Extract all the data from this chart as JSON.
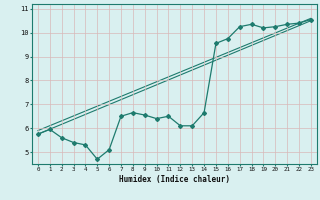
{
  "title": "",
  "xlabel": "Humidex (Indice chaleur)",
  "bg_color": "#d9f0f0",
  "grid_color": "#c8dede",
  "line_color": "#1e7b6e",
  "xlim": [
    -0.5,
    23.5
  ],
  "ylim": [
    4.5,
    11.2
  ],
  "xticks": [
    0,
    1,
    2,
    3,
    4,
    5,
    6,
    7,
    8,
    9,
    10,
    11,
    12,
    13,
    14,
    15,
    16,
    17,
    18,
    19,
    20,
    21,
    22,
    23
  ],
  "yticks": [
    5,
    6,
    7,
    8,
    9,
    10,
    11
  ],
  "curve_x": [
    0,
    1,
    2,
    3,
    4,
    5,
    6,
    7,
    8,
    9,
    10,
    11,
    12,
    13,
    14,
    15,
    16,
    17,
    18,
    19,
    20,
    21,
    22,
    23
  ],
  "curve_y": [
    5.75,
    5.95,
    5.6,
    5.4,
    5.3,
    4.7,
    5.1,
    6.5,
    6.65,
    6.55,
    6.4,
    6.5,
    6.1,
    6.1,
    6.65,
    9.55,
    9.75,
    10.25,
    10.35,
    10.2,
    10.25,
    10.35,
    10.4,
    10.55
  ],
  "trendline1": [
    0,
    5.75,
    23,
    10.5
  ],
  "trendline2": [
    0,
    5.9,
    23,
    10.6
  ]
}
